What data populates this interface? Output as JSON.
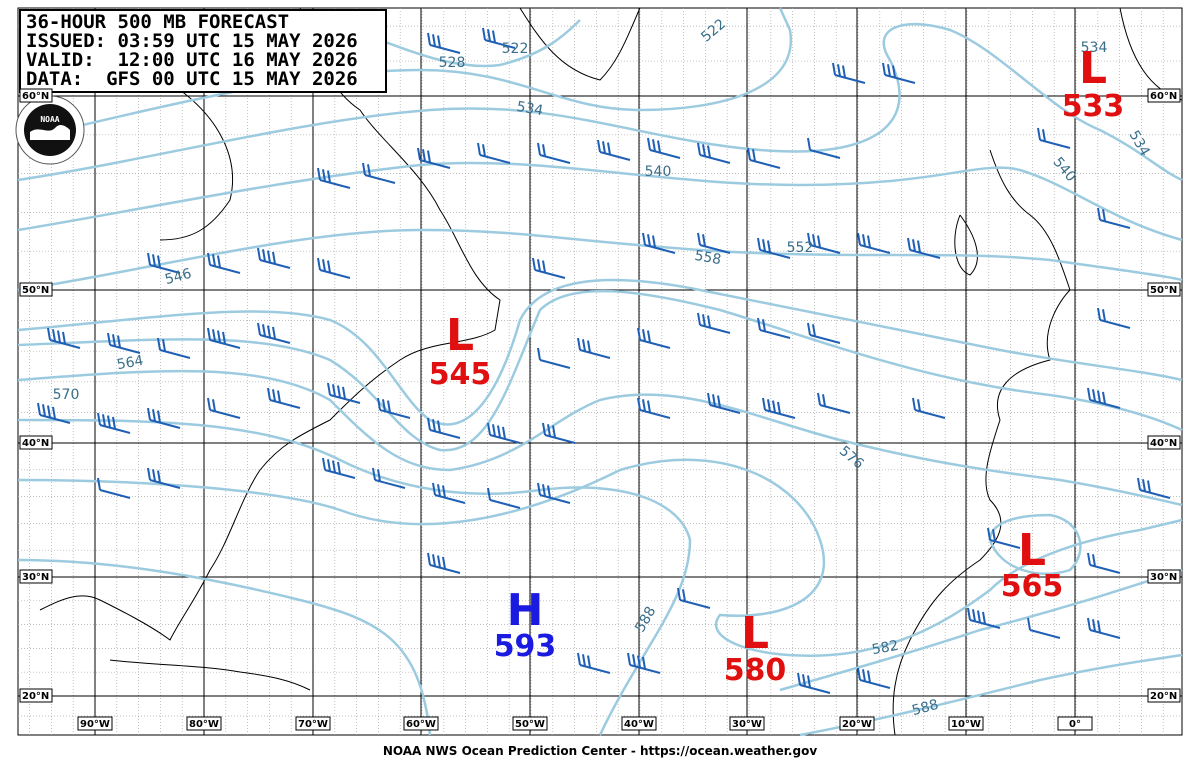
{
  "header": {
    "lines": [
      "36-HOUR 500 MB FORECAST",
      "ISSUED: 03:59 UTC 15 MAY 2026",
      "VALID:  12:00 UTC 16 MAY 2026",
      "DATA:  GFS 00 UTC 15 MAY 2026"
    ]
  },
  "logo": "NOAA",
  "longitude_labels": [
    "90°W",
    "80°W",
    "70°W",
    "60°W",
    "50°W",
    "40°W",
    "30°W",
    "20°W",
    "10°W",
    "0°"
  ],
  "latitude_labels": [
    "60°N",
    "50°N",
    "40°N",
    "30°N",
    "20°N"
  ],
  "centers": [
    {
      "letter": "L",
      "value": 533
    },
    {
      "letter": "L",
      "value": 545
    },
    {
      "letter": "H",
      "value": 593
    },
    {
      "letter": "L",
      "value": 580
    },
    {
      "letter": "L",
      "value": 565
    }
  ],
  "contour_labels": [
    528,
    522,
    522,
    534,
    540,
    546,
    552,
    558,
    564,
    570,
    576,
    582,
    588,
    588,
    540,
    534,
    534
  ],
  "footer": "NOAA NWS Ocean Prediction Center - https://ocean.weather.gov"
}
